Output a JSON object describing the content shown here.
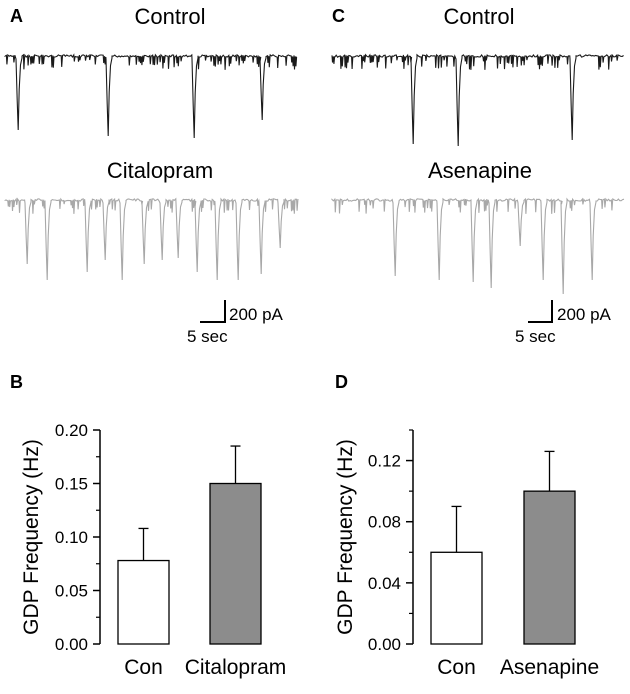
{
  "panels": {
    "a": {
      "letter": "A",
      "label_top": "Control",
      "label_bottom": "Citalopram",
      "scale_current": "200 pA",
      "scale_time": "5 sec"
    },
    "c": {
      "letter": "C",
      "label_top": "Control",
      "label_bottom": "Asenapine",
      "scale_current": "200 pA",
      "scale_time": "5 sec"
    },
    "b": {
      "letter": "B"
    },
    "d": {
      "letter": "D"
    }
  },
  "colors": {
    "control_trace": "#1a1a1a",
    "drug_trace": "#a8a8a8",
    "control_bar": "#ffffff",
    "drug_bar": "#8c8c8c"
  },
  "chart_data": [
    {
      "panel": "B",
      "type": "bar",
      "categories": [
        "Con",
        "Citalopram"
      ],
      "values": [
        0.078,
        0.15
      ],
      "error_bars": [
        0.03,
        0.035
      ],
      "ylabel": "GDP Frequency (Hz)",
      "ylim": [
        0,
        0.2
      ],
      "yticks": [
        "0.00",
        "0.05",
        "0.10",
        "0.15",
        "0.20"
      ],
      "grid": false
    },
    {
      "panel": "D",
      "type": "bar",
      "categories": [
        "Con",
        "Asenapine"
      ],
      "values": [
        0.06,
        0.1
      ],
      "error_bars": [
        0.03,
        0.026
      ],
      "ylabel": "GDP Frequency (Hz)",
      "ylim": [
        0,
        0.14
      ],
      "yticks": [
        "0.00",
        "0.04",
        "0.08",
        "0.12"
      ],
      "grid": false
    }
  ]
}
